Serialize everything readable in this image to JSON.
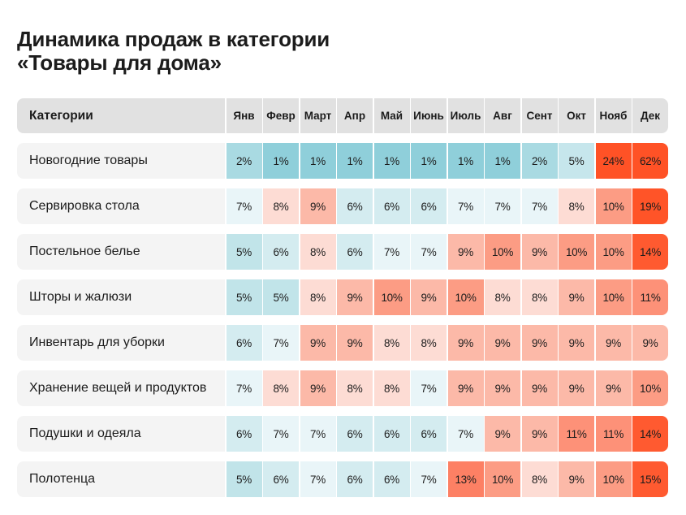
{
  "title": {
    "line1": "Динамика продаж в категории",
    "line2": "«Товары для дома»"
  },
  "chart_data": {
    "type": "heatmap",
    "title": "Динамика продаж в категории «Товары для дома»",
    "row_header": "Категории",
    "columns": [
      "Янв",
      "Февр",
      "Март",
      "Апр",
      "Май",
      "Июнь",
      "Июль",
      "Авг",
      "Сент",
      "Окт",
      "Нояб",
      "Дек"
    ],
    "unit": "%",
    "rows": [
      {
        "label": "Новогодние товары",
        "values": [
          2,
          1,
          1,
          1,
          1,
          1,
          1,
          1,
          2,
          5,
          24,
          62
        ]
      },
      {
        "label": "Сервировка стола",
        "values": [
          7,
          8,
          9,
          6,
          6,
          6,
          7,
          7,
          7,
          8,
          10,
          19
        ]
      },
      {
        "label": "Постельное белье",
        "values": [
          5,
          6,
          8,
          6,
          7,
          7,
          9,
          10,
          9,
          10,
          10,
          14
        ]
      },
      {
        "label": "Шторы и жалюзи",
        "values": [
          5,
          5,
          8,
          9,
          10,
          9,
          10,
          8,
          8,
          9,
          10,
          11
        ]
      },
      {
        "label": "Инвентарь для уборки",
        "values": [
          6,
          7,
          9,
          9,
          8,
          8,
          9,
          9,
          9,
          9,
          9,
          9
        ]
      },
      {
        "label": "Хранение вещей и продуктов",
        "values": [
          7,
          8,
          9,
          8,
          8,
          7,
          9,
          9,
          9,
          9,
          9,
          10
        ]
      },
      {
        "label": "Подушки и одеяла",
        "values": [
          6,
          7,
          7,
          6,
          6,
          6,
          7,
          9,
          9,
          11,
          11,
          14
        ]
      },
      {
        "label": "Полотенца",
        "values": [
          5,
          6,
          7,
          6,
          6,
          7,
          13,
          10,
          8,
          9,
          10,
          15
        ]
      }
    ],
    "color_scale": {
      "1": "#8fcfda",
      "2": "#a9dae2",
      "5": "#c1e4e9",
      "6": "#d4ecf0",
      "7": "#e9f5f8",
      "8": "#fddcd4",
      "9": "#fcb9a8",
      "10": "#fc9c84",
      "11": "#fd9178",
      "13": "#fd8064",
      "14": "#ff5a30",
      "15": "#ff5a30",
      "19": "#ff5428",
      "24": "#ff5226",
      "62": "#ff5226"
    },
    "header_bg": "#e1e1e1",
    "label_bg": "#f4f4f4"
  }
}
